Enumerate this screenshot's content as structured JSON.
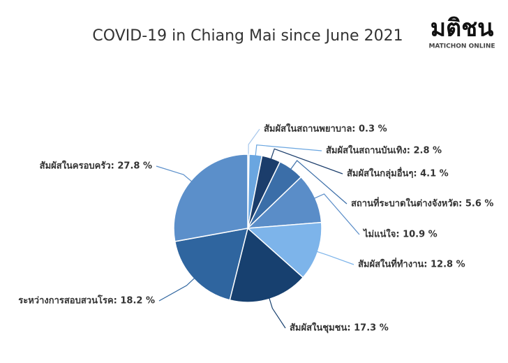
{
  "chart_data": {
    "type": "pie",
    "title": "COVID-19 in Chiang Mai since June 2021",
    "labels": [
      "สัมผัสในสถานพยาบาล: 0.3 %",
      "สัมผัสในสถานบันเทิง: 2.8 %",
      "สัมผัสในกลุ่มอื่นๆ: 4.1 %",
      "สถานที่ระบาดในต่างจังหวัด: 5.6 %",
      "ไม่แน่ใจ: 10.9 %",
      "สัมผัสในที่ทำงาน: 12.8 %",
      "สัมผัสในชุมชน: 17.3 %",
      "ระหว่างการสอบสวนโรค: 18.2 %",
      "สัมผัสในครอบครัว: 27.8 %"
    ],
    "values": [
      0.3,
      2.8,
      4.1,
      5.6,
      10.9,
      12.8,
      17.3,
      18.2,
      27.8
    ],
    "colors": [
      "#a8c8ec",
      "#6aa6e0",
      "#1b3d6b",
      "#3b6ea8",
      "#5a8dc8",
      "#7db4ea",
      "#17406f",
      "#2f659f",
      "#5b8fca"
    ]
  },
  "logo": {
    "main": "มติชน",
    "sub": "MATICHON ONLINE"
  }
}
